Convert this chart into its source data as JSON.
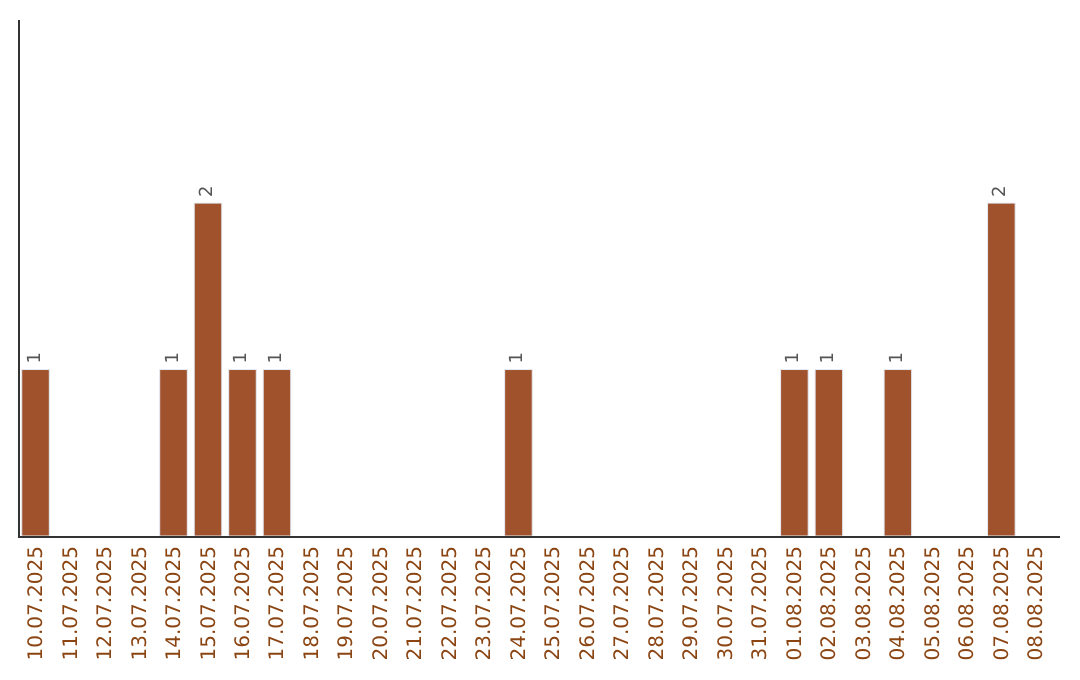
{
  "chart_data": {
    "type": "bar",
    "categories": [
      "10.07.2025",
      "11.07.2025",
      "12.07.2025",
      "13.07.2025",
      "14.07.2025",
      "15.07.2025",
      "16.07.2025",
      "17.07.2025",
      "18.07.2025",
      "19.07.2025",
      "20.07.2025",
      "21.07.2025",
      "22.07.2025",
      "23.07.2025",
      "24.07.2025",
      "25.07.2025",
      "26.07.2025",
      "27.07.2025",
      "28.07.2025",
      "29.07.2025",
      "30.07.2025",
      "31.07.2025",
      "01.08.2025",
      "02.08.2025",
      "03.08.2025",
      "04.08.2025",
      "05.08.2025",
      "06.08.2025",
      "07.08.2025",
      "08.08.2025"
    ],
    "values": [
      1,
      null,
      null,
      null,
      1,
      2,
      1,
      1,
      null,
      null,
      null,
      null,
      null,
      null,
      1,
      null,
      null,
      null,
      null,
      null,
      null,
      null,
      1,
      1,
      null,
      1,
      null,
      null,
      2,
      null
    ],
    "value_labels": [
      "1",
      null,
      null,
      null,
      "1",
      "2",
      "1",
      "1",
      null,
      null,
      null,
      null,
      null,
      null,
      "1",
      null,
      null,
      null,
      null,
      null,
      null,
      null,
      "1",
      "1",
      null,
      "1",
      null,
      null,
      "2",
      null
    ],
    "color": "#a0522d",
    "ylim": [
      0,
      3.1
    ],
    "tick_labels": "x",
    "legend": false
  }
}
